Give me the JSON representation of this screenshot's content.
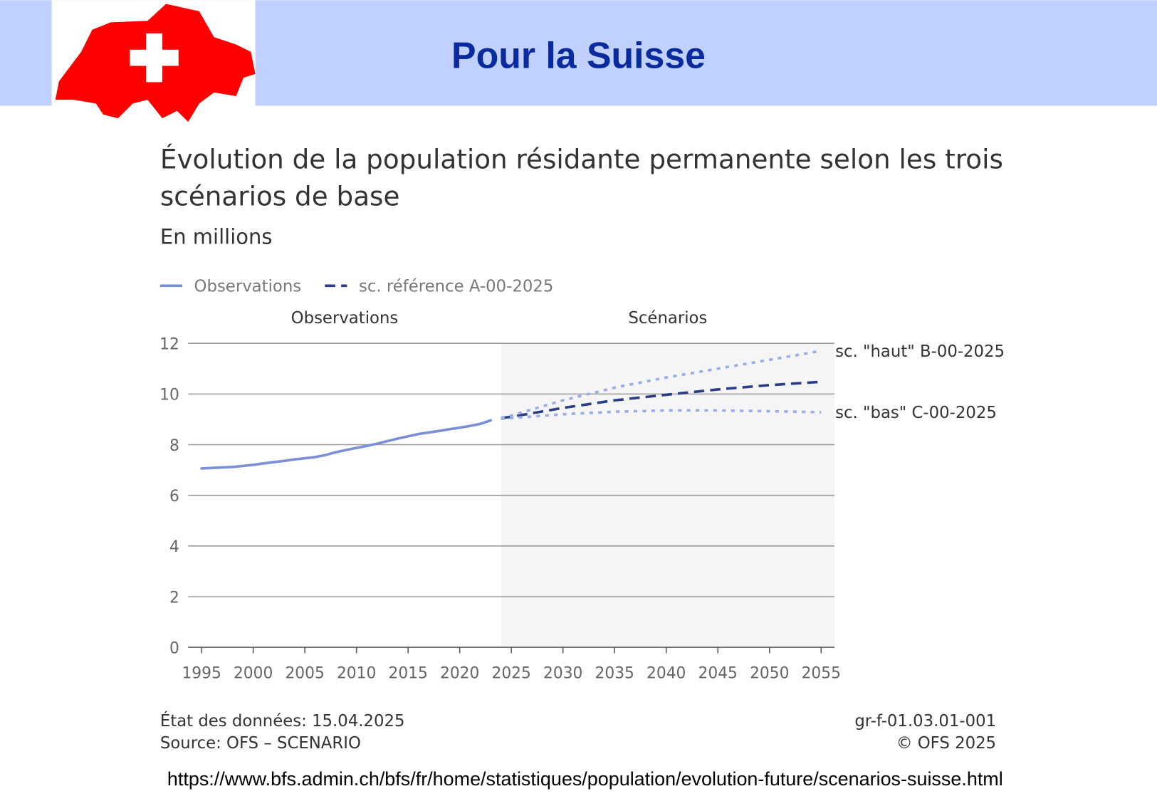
{
  "header": {
    "title": "Pour la Suisse"
  },
  "chart_data": {
    "type": "line",
    "title": [
      "Évolution de la population résidante permanente selon les trois",
      "scénarios de base"
    ],
    "subtitle": "En millions",
    "regions": [
      {
        "label": "Observations"
      },
      {
        "label": "Scénarios",
        "shaded_from": 2024
      }
    ],
    "series": [
      {
        "name": "Observations",
        "color": "#7b8fd6",
        "dash": "solid",
        "x": [
          1995,
          1996,
          1997,
          1998,
          1999,
          2000,
          2001,
          2002,
          2003,
          2004,
          2005,
          2006,
          2007,
          2008,
          2009,
          2010,
          2011,
          2012,
          2013,
          2014,
          2015,
          2016,
          2017,
          2018,
          2019,
          2020,
          2021,
          2022,
          2023
        ],
        "values": [
          7.06,
          7.08,
          7.1,
          7.12,
          7.16,
          7.2,
          7.26,
          7.31,
          7.36,
          7.42,
          7.46,
          7.51,
          7.59,
          7.7,
          7.79,
          7.87,
          7.95,
          8.04,
          8.14,
          8.24,
          8.33,
          8.42,
          8.48,
          8.54,
          8.61,
          8.67,
          8.74,
          8.82,
          8.96
        ]
      },
      {
        "name": "sc. référence A-00-2025",
        "color": "#2b3e85",
        "dash": "dashed",
        "x": [
          2024,
          2025,
          2030,
          2035,
          2040,
          2045,
          2050,
          2055
        ],
        "values": [
          9.05,
          9.1,
          9.45,
          9.75,
          9.97,
          10.18,
          10.35,
          10.48
        ]
      },
      {
        "name": "sc. \"haut\" B-00-2025",
        "color": "#9aaee6",
        "dash": "dotted",
        "end_label": true,
        "x": [
          2024,
          2025,
          2030,
          2035,
          2040,
          2045,
          2050,
          2055
        ],
        "values": [
          9.06,
          9.15,
          9.75,
          10.25,
          10.65,
          11.0,
          11.35,
          11.7
        ]
      },
      {
        "name": "sc. \"bas\" C-00-2025",
        "color": "#9aaee6",
        "dash": "dotted",
        "end_label": true,
        "x": [
          2024,
          2025,
          2030,
          2035,
          2040,
          2045,
          2050,
          2055
        ],
        "values": [
          9.02,
          9.05,
          9.2,
          9.3,
          9.35,
          9.35,
          9.32,
          9.28
        ]
      }
    ],
    "xlim": [
      1993.7,
      2056.3
    ],
    "xticks": [
      1995,
      2000,
      2005,
      2010,
      2015,
      2020,
      2025,
      2030,
      2035,
      2040,
      2045,
      2050,
      2055
    ],
    "ylim": [
      0,
      12
    ],
    "yticks": [
      0,
      2,
      4,
      6,
      8,
      10,
      12
    ],
    "grid": true,
    "footer": {
      "date": "État des données: 15.04.2025",
      "source": "Source: OFS – SCENARIO",
      "id": "gr-f-01.03.01-001",
      "copyright": "© OFS 2025"
    }
  },
  "url": "https://www.bfs.admin.ch/bfs/fr/home/statistiques/population/evolution-future/scenarios-suisse.html"
}
